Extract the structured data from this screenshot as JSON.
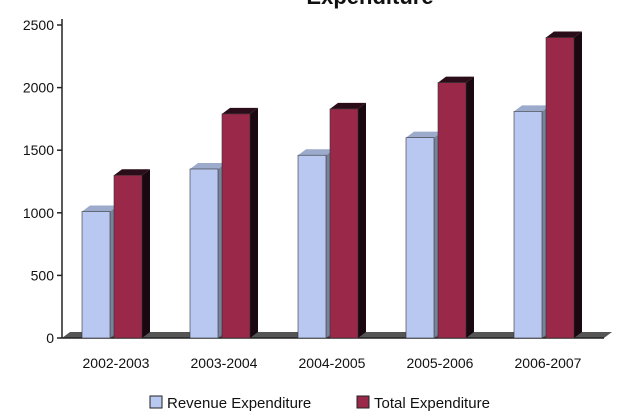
{
  "chart_data": {
    "type": "bar",
    "title": "Expenditure",
    "categories": [
      "2002-2003",
      "2003-2004",
      "2004-2005",
      "2005-2006",
      "2006-2007"
    ],
    "series": [
      {
        "name": "Revenue Expenditure",
        "values": [
          1010,
          1350,
          1460,
          1600,
          1810
        ],
        "color": "#b8c8f0"
      },
      {
        "name": "Total Expenditure",
        "values": [
          1300,
          1790,
          1830,
          2040,
          2400
        ],
        "color": "#9a2848"
      }
    ],
    "yticks": [
      0,
      500,
      1000,
      1500,
      2000,
      2500
    ],
    "ylim": [
      0,
      2500
    ],
    "xlabel": "",
    "ylabel": "",
    "grid": false,
    "legend_position": "bottom"
  }
}
